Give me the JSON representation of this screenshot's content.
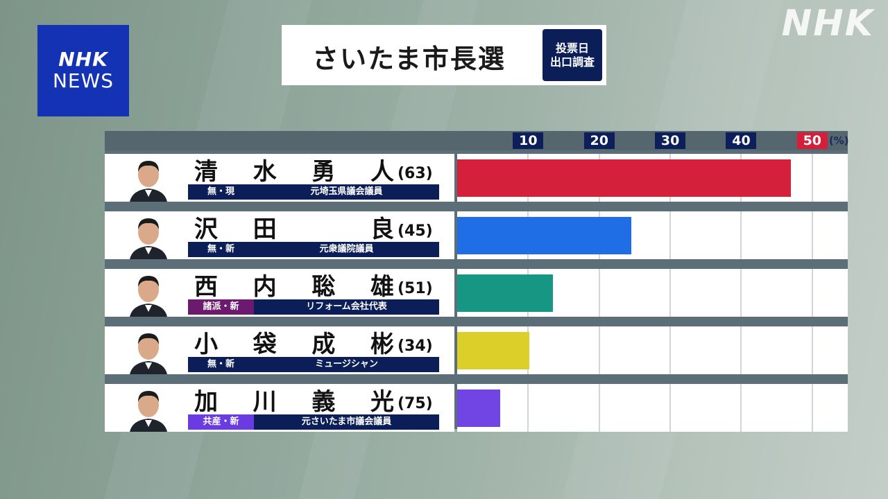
{
  "branding": {
    "logo_line1": "NHK",
    "logo_line2": "NEWS",
    "watermark": "NHK"
  },
  "header": {
    "title": "さいたま市長選",
    "badge_line1": "投票日",
    "badge_line2": "出口調査"
  },
  "chart_data": {
    "type": "bar",
    "orientation": "horizontal",
    "unit": "(%)",
    "xlim": [
      0,
      55
    ],
    "ticks": [
      "10",
      "20",
      "30",
      "40",
      "50"
    ],
    "tick_values": [
      10,
      20,
      30,
      40,
      50
    ],
    "highlight_tick": "50",
    "categories": [
      "清水勇人",
      "沢田良",
      "西内聡雄",
      "小袋成彬",
      "加川義光"
    ],
    "values": [
      47,
      24.5,
      13.5,
      10.2,
      6.1
    ],
    "candidates": [
      {
        "name_chars": [
          "清",
          "水",
          "勇",
          "人"
        ],
        "age": "(63)",
        "party": "無・現",
        "title": "元埼玉県議会議員",
        "party_color": "#0b1e57",
        "bar_color": "#d5203c"
      },
      {
        "name_chars": [
          "沢",
          "田",
          "",
          "良"
        ],
        "age": "(45)",
        "party": "無・新",
        "title": "元衆議院議員",
        "party_color": "#0b1e57",
        "bar_color": "#1f6ee6"
      },
      {
        "name_chars": [
          "西",
          "内",
          "聡",
          "雄"
        ],
        "age": "(51)",
        "party": "諸派・新",
        "title": "リフォーム会社代表",
        "party_color": "#6b1a6e",
        "bar_color": "#169683"
      },
      {
        "name_chars": [
          "小",
          "袋",
          "成",
          "彬"
        ],
        "age": "(34)",
        "party": "無・新",
        "title": "ミュージシャン",
        "party_color": "#0b1e57",
        "bar_color": "#ddcf2a"
      },
      {
        "name_chars": [
          "加",
          "川",
          "義",
          "光"
        ],
        "age": "(75)",
        "party": "共産・新",
        "title": "元さいたま市議会議員",
        "party_color": "#6a3be0",
        "bar_color": "#7045e3"
      }
    ]
  }
}
